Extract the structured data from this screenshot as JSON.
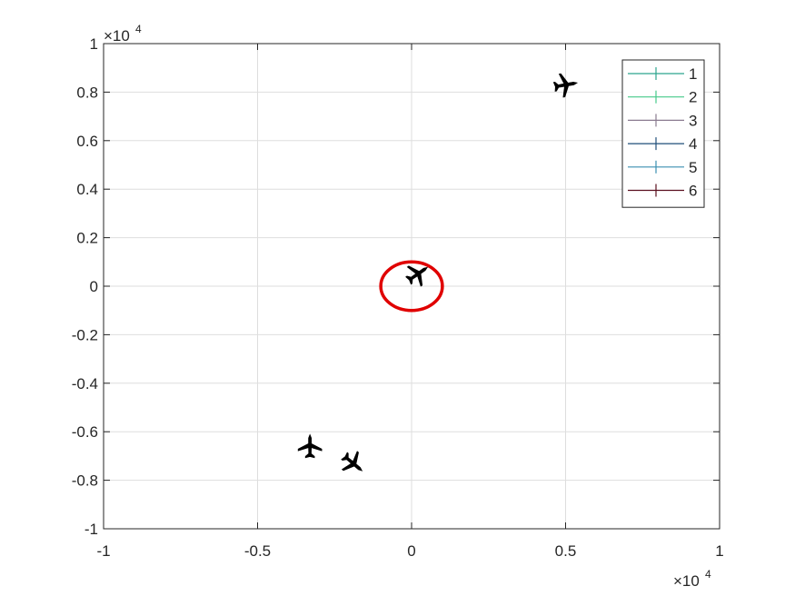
{
  "chart_data": {
    "type": "scatter",
    "title": "",
    "xlabel": "",
    "ylabel": "",
    "xlim": [
      -10000,
      10000
    ],
    "ylim": [
      -10000,
      10000
    ],
    "x_ticks": [
      -10000,
      -5000,
      0,
      5000,
      10000
    ],
    "x_tick_labels": [
      "-1",
      "-0.5",
      "0",
      "0.5",
      "1"
    ],
    "y_ticks": [
      -10000,
      -8000,
      -6000,
      -4000,
      -2000,
      0,
      2000,
      4000,
      6000,
      8000,
      10000
    ],
    "y_tick_labels": [
      "-1",
      "-0.8",
      "-0.6",
      "-0.4",
      "-0.2",
      "0",
      "0.2",
      "0.4",
      "0.6",
      "0.8",
      "1"
    ],
    "x_exponent_label": "×10",
    "x_exponent_power": "4",
    "y_exponent_label": "×10",
    "y_exponent_power": "4",
    "grid": true,
    "legend_position": "top-right",
    "series": [
      {
        "name": "1",
        "color": "#2ca58d",
        "marker": "aircraft-icon",
        "x": [
          5000
        ],
        "y": [
          8300
        ]
      },
      {
        "name": "2",
        "color": "#46c98a",
        "marker": "aircraft-icon",
        "x": [
          200
        ],
        "y": [
          500
        ]
      },
      {
        "name": "3",
        "color": "#8a7a8f",
        "marker": "aircraft-icon",
        "x": [
          -3300
        ],
        "y": [
          -6600
        ]
      },
      {
        "name": "4",
        "color": "#1f4e79",
        "marker": "aircraft-icon",
        "x": [
          -1900
        ],
        "y": [
          -7300
        ]
      },
      {
        "name": "5",
        "color": "#3a8fb0",
        "marker": "aircraft-icon",
        "x": [],
        "y": []
      },
      {
        "name": "6",
        "color": "#5a0f1e",
        "marker": "aircraft-icon",
        "x": [],
        "y": []
      }
    ],
    "aircraft_headings_deg": [
      80,
      55,
      0,
      130
    ],
    "annotation": {
      "type": "circle",
      "color": "#e00000",
      "cx": 0,
      "cy": 0,
      "rx": 1000,
      "ry": 1000
    }
  }
}
